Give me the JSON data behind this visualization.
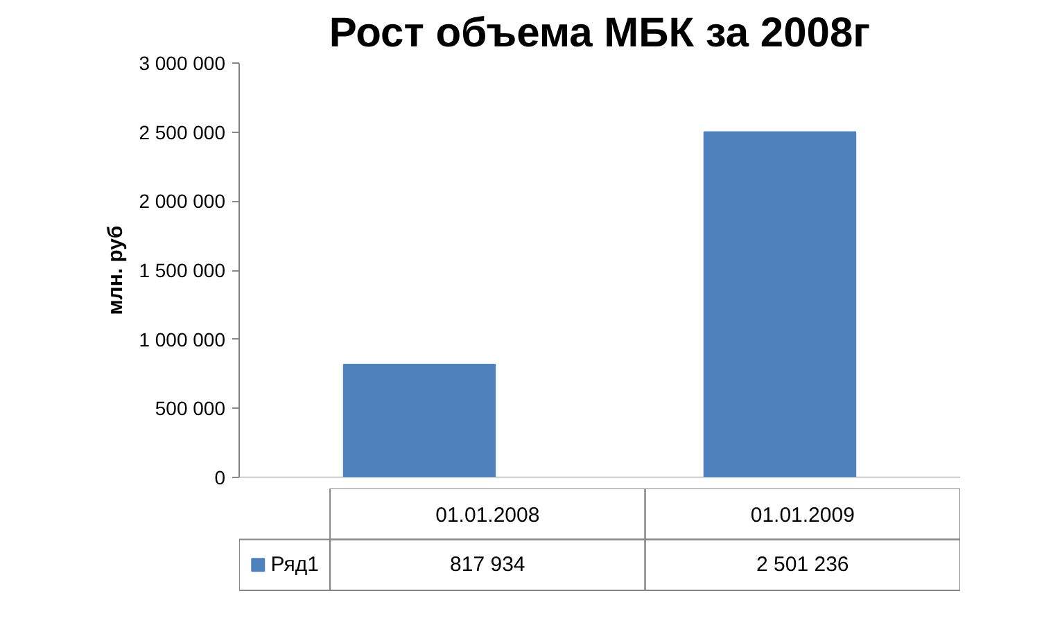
{
  "chart_data": {
    "type": "bar",
    "title": "Рост объема МБК за 2008г",
    "ylabel": "млн. руб",
    "categories": [
      "01.01.2008",
      "01.01.2009"
    ],
    "series": [
      {
        "name": "Ряд1",
        "color": "#4f81bd",
        "values": [
          817934,
          2501236
        ],
        "value_labels": [
          "817 934",
          "2 501 236"
        ]
      }
    ],
    "ylim": [
      0,
      3000000
    ],
    "yticks": [
      {
        "value": 0,
        "label": "0"
      },
      {
        "value": 500000,
        "label": "500 000"
      },
      {
        "value": 1000000,
        "label": "1 000 000"
      },
      {
        "value": 1500000,
        "label": "1 500 000"
      },
      {
        "value": 2000000,
        "label": "2 000 000"
      },
      {
        "value": 2500000,
        "label": "2 500 000"
      },
      {
        "value": 3000000,
        "label": "3 000 000"
      }
    ],
    "grid": false,
    "legend": "bottom left"
  }
}
